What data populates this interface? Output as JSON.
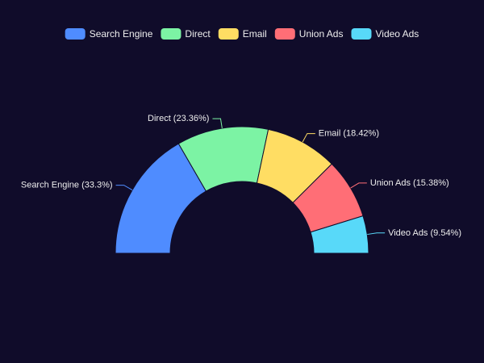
{
  "colors": {
    "background": "#100c2a",
    "text": "#eeeeee"
  },
  "chart_data": {
    "type": "pie",
    "variant": "half-donut",
    "legend_placement": "top-center",
    "series": [
      {
        "name": "Search Engine",
        "value": 33.3,
        "label": "Search Engine (33.3%)",
        "color": "#4f8cff"
      },
      {
        "name": "Direct",
        "value": 23.36,
        "label": "Direct (23.36%)",
        "color": "#7cf3a4"
      },
      {
        "name": "Email",
        "value": 18.42,
        "label": "Email (18.42%)",
        "color": "#ffdd63"
      },
      {
        "name": "Union Ads",
        "value": 15.38,
        "label": "Union Ads (15.38%)",
        "color": "#ff6e76"
      },
      {
        "name": "Video Ads",
        "value": 9.54,
        "label": "Video Ads (9.54%)",
        "color": "#58d9f9"
      }
    ]
  }
}
